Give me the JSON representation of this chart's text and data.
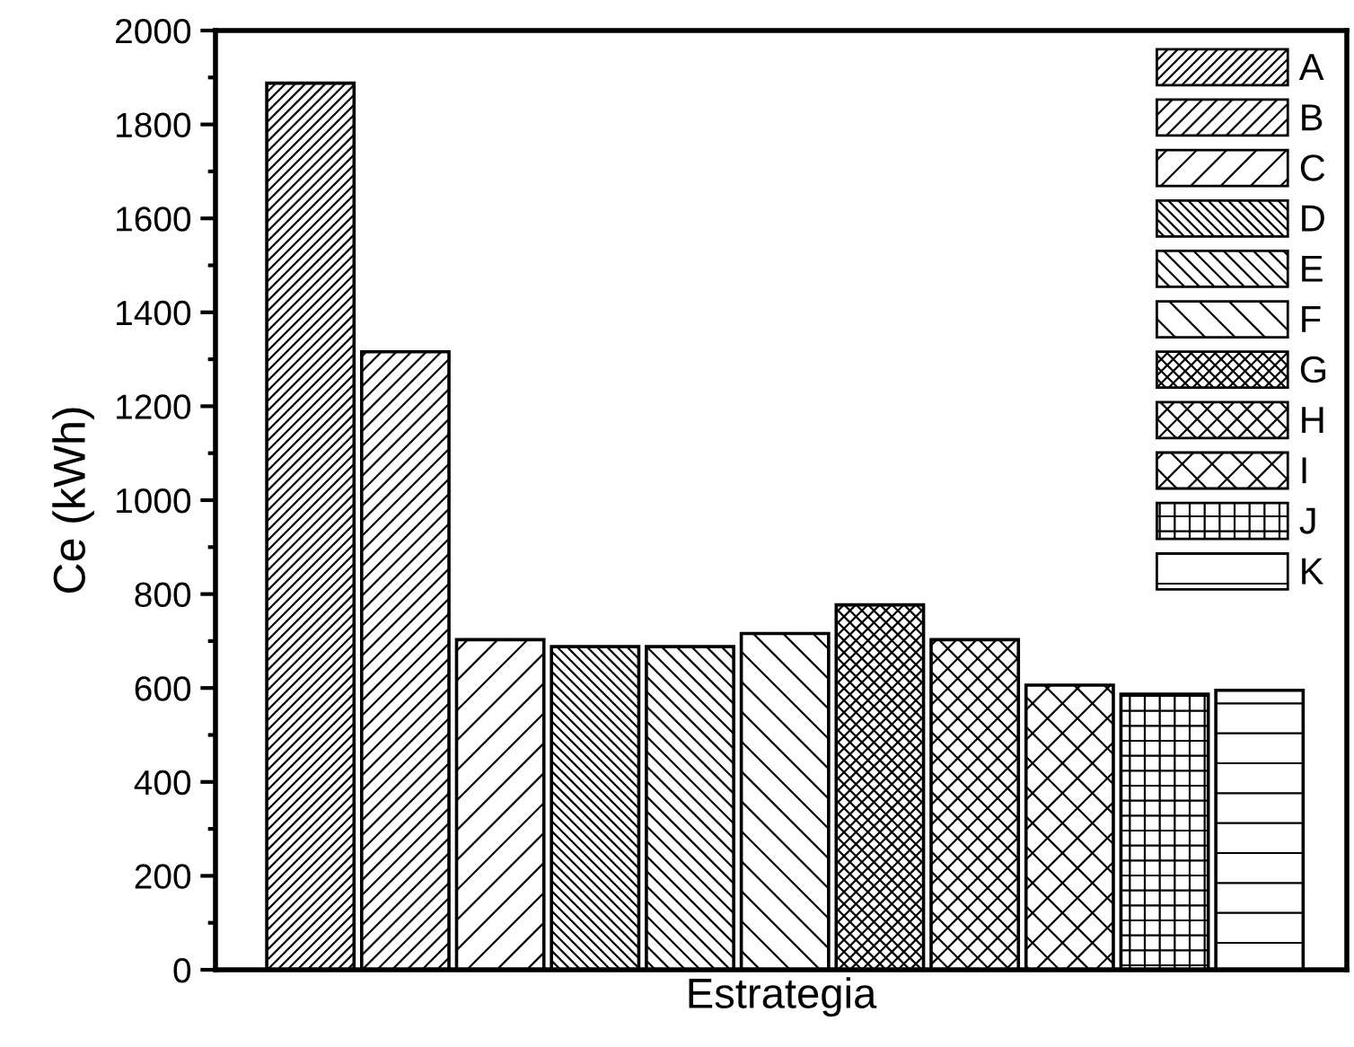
{
  "chart_data": {
    "type": "bar",
    "xlabel": "Estrategia",
    "ylabel": "Ce (kWh)",
    "categories": [
      null,
      null,
      null,
      null,
      null,
      null,
      null,
      null,
      null,
      null,
      null
    ],
    "series": [
      {
        "name": "A",
        "color": "#000000",
        "values": [
          1888,
          null,
          null,
          null,
          null,
          null,
          null,
          null,
          null,
          null,
          null
        ]
      },
      {
        "name": "B",
        "color": "#000000",
        "values": [
          null,
          1316,
          null,
          null,
          null,
          null,
          null,
          null,
          null,
          null,
          null
        ]
      },
      {
        "name": "C",
        "color": "#000000",
        "values": [
          null,
          null,
          703,
          null,
          null,
          null,
          null,
          null,
          null,
          null,
          null
        ]
      },
      {
        "name": "D",
        "color": "#000000",
        "values": [
          null,
          null,
          null,
          688,
          null,
          null,
          null,
          null,
          null,
          null,
          null
        ]
      },
      {
        "name": "E",
        "color": "#000000",
        "values": [
          null,
          null,
          null,
          null,
          688,
          null,
          null,
          null,
          null,
          null,
          null
        ]
      },
      {
        "name": "F",
        "color": "#000000",
        "values": [
          null,
          null,
          null,
          null,
          null,
          716,
          null,
          null,
          null,
          null,
          null
        ]
      },
      {
        "name": "G",
        "color": "#000000",
        "values": [
          null,
          null,
          null,
          null,
          null,
          null,
          777,
          null,
          null,
          null,
          null
        ]
      },
      {
        "name": "H",
        "color": "#000000",
        "values": [
          null,
          null,
          null,
          null,
          null,
          null,
          null,
          703,
          null,
          null,
          null
        ]
      },
      {
        "name": "I",
        "color": "#000000",
        "values": [
          null,
          null,
          null,
          null,
          null,
          null,
          null,
          null,
          606,
          null,
          null
        ]
      },
      {
        "name": "J",
        "color": "#000000",
        "values": [
          null,
          null,
          null,
          null,
          null,
          null,
          null,
          null,
          null,
          587,
          null
        ]
      },
      {
        "name": "K",
        "color": "#000000",
        "values": [
          null,
          null,
          null,
          null,
          null,
          null,
          null,
          null,
          null,
          null,
          595
        ]
      }
    ],
    "ylim": [
      0,
      2000
    ],
    "yticks": [
      0,
      200,
      400,
      600,
      800,
      1000,
      1200,
      1400,
      1600,
      1800,
      2000
    ],
    "grid": false,
    "legend": "top right",
    "tick_labels": "y"
  }
}
